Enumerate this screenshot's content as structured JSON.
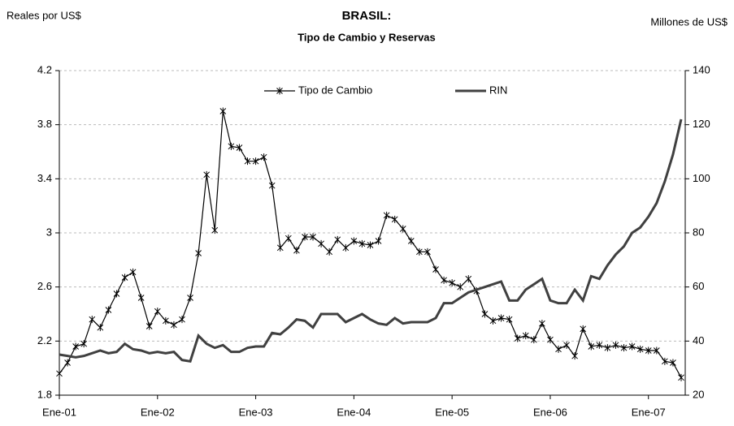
{
  "chart_data": {
    "type": "line",
    "title": "BRASIL:",
    "subtitle": "Tipo de Cambio y Reservas",
    "y_label": "Reales por US$",
    "y2_label": "Millones de US$",
    "categories": [
      "Ene-01",
      null,
      null,
      null,
      null,
      null,
      null,
      null,
      null,
      null,
      null,
      null,
      "Ene-02",
      null,
      null,
      null,
      null,
      null,
      null,
      null,
      null,
      null,
      null,
      null,
      "Ene-03",
      null,
      null,
      null,
      null,
      null,
      null,
      null,
      null,
      null,
      null,
      null,
      "Ene-04",
      null,
      null,
      null,
      null,
      null,
      null,
      null,
      null,
      null,
      null,
      null,
      "Ene-05",
      null,
      null,
      null,
      null,
      null,
      null,
      null,
      null,
      null,
      null,
      null,
      "Ene-06",
      null,
      null,
      null,
      null,
      null,
      null,
      null,
      null,
      null,
      null,
      null,
      "Ene-07",
      null,
      null,
      null,
      null
    ],
    "ylim": [
      1.8,
      4.2
    ],
    "yticks": [
      1.8,
      2.2,
      2.6,
      3.0,
      3.4,
      3.8,
      4.2
    ],
    "y2lim": [
      20,
      140
    ],
    "y2ticks": [
      20,
      40,
      60,
      80,
      100,
      120,
      140
    ],
    "grid": true,
    "legend": "top",
    "series": [
      {
        "name": "Tipo de Cambio",
        "color": "#000000",
        "marker": "asterisk",
        "values": [
          1.96,
          2.04,
          2.16,
          2.18,
          2.36,
          2.3,
          2.43,
          2.55,
          2.67,
          2.71,
          2.52,
          2.31,
          2.42,
          2.35,
          2.32,
          2.36,
          2.52,
          2.85,
          3.43,
          3.02,
          3.9,
          3.64,
          3.63,
          3.53,
          3.53,
          3.56,
          3.35,
          2.89,
          2.96,
          2.87,
          2.97,
          2.97,
          2.92,
          2.86,
          2.95,
          2.89,
          2.94,
          2.92,
          2.91,
          2.94,
          3.13,
          3.1,
          3.03,
          2.94,
          2.86,
          2.86,
          2.73,
          2.65,
          2.63,
          2.6,
          2.66,
          2.57,
          2.4,
          2.35,
          2.37,
          2.36,
          2.22,
          2.24,
          2.21,
          2.33,
          2.21,
          2.14,
          2.17,
          2.09,
          2.29,
          2.16,
          2.17,
          2.15,
          2.17,
          2.15,
          2.16,
          2.14,
          2.13,
          2.13,
          2.05,
          2.04,
          1.93
        ]
      },
      {
        "name": "RIN",
        "color": "#404040",
        "axis": "y2",
        "values": [
          35,
          34.5,
          34,
          34.5,
          35.5,
          36.5,
          35.5,
          36,
          39,
          37,
          36.5,
          35.5,
          36,
          35.5,
          36,
          33,
          32.5,
          42,
          39,
          37.5,
          38.5,
          36,
          36,
          37.5,
          38,
          38,
          43,
          42.5,
          45,
          48,
          47.5,
          45,
          50,
          50,
          50,
          47,
          48.5,
          50,
          48,
          46.5,
          46,
          48.5,
          46.5,
          47,
          47,
          47,
          48.5,
          54,
          54,
          56,
          58,
          59,
          60,
          61,
          62,
          55,
          55,
          59,
          61,
          63,
          55,
          54,
          54,
          59,
          55,
          64,
          63,
          68,
          72,
          75,
          80,
          82,
          86,
          91,
          99,
          109,
          122
        ]
      }
    ]
  }
}
